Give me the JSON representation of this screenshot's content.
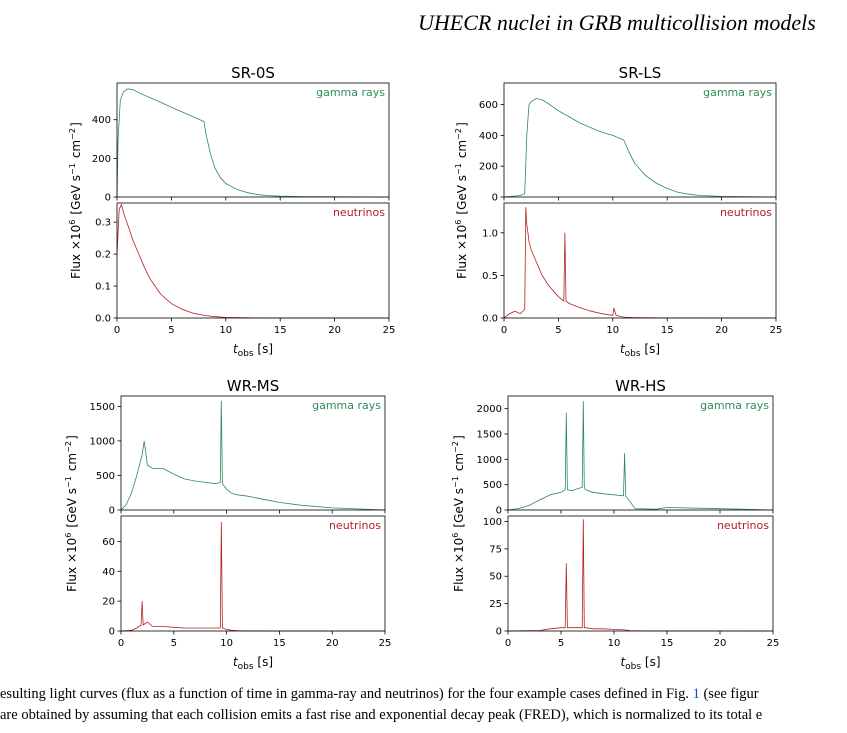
{
  "header": {
    "running_title": "UHECR nuclei in GRB multicollision models"
  },
  "caption": {
    "line1_pre": "esulting light curves (flux as a function of time in gamma-ray and neutrinos) for the four example cases defined in Fig. ",
    "line1_ref": "1",
    "line1_post": " (see figur",
    "line2": "are obtained by assuming that each collision emits a fast rise and exponential decay peak (FRED), which is normalized to its total e"
  },
  "colors": {
    "gamma": "#2e8b57",
    "neutrino": "#b22222"
  },
  "chart_data": [
    {
      "type": "line",
      "title": "SR-0S",
      "xlabel": "t_obs [s]",
      "ylabel": "Flux ×10^6 [GeV s^-1 cm^-2]",
      "xlim": [
        0,
        25
      ],
      "x_ticks": [
        0,
        5,
        10,
        15,
        20,
        25
      ],
      "gamma": {
        "name": "gamma rays",
        "ylim": [
          0,
          590
        ],
        "y_ticks": [
          0,
          200,
          400
        ],
        "x": [
          0,
          0.1,
          0.3,
          0.6,
          1.0,
          1.5,
          2.0,
          3.0,
          4.0,
          5.0,
          6.0,
          7.0,
          8.0,
          8.2,
          8.6,
          9.0,
          9.5,
          10,
          11,
          12,
          13,
          14,
          15,
          17,
          20,
          25
        ],
        "y": [
          0,
          300,
          500,
          545,
          560,
          555,
          540,
          515,
          490,
          465,
          440,
          415,
          390,
          320,
          220,
          150,
          100,
          70,
          40,
          22,
          12,
          7,
          4,
          2,
          1,
          0
        ]
      },
      "neutrino": {
        "name": "neutrinos",
        "ylim": [
          0,
          0.36
        ],
        "y_ticks": [
          0.0,
          0.1,
          0.2,
          0.3
        ],
        "x": [
          0,
          0.2,
          0.4,
          0.6,
          1.0,
          1.5,
          2.0,
          2.5,
          3.0,
          3.5,
          4.0,
          5.0,
          6.0,
          7.0,
          8.0,
          9.0,
          10,
          12,
          15,
          25
        ],
        "y": [
          0.2,
          0.34,
          0.355,
          0.33,
          0.29,
          0.24,
          0.2,
          0.16,
          0.125,
          0.1,
          0.075,
          0.045,
          0.027,
          0.015,
          0.008,
          0.004,
          0.002,
          0.0005,
          0.0001,
          0
        ]
      }
    },
    {
      "type": "line",
      "title": "SR-LS",
      "xlabel": "t_obs [s]",
      "ylabel": "Flux ×10^6 [GeV s^-1 cm^-2]",
      "xlim": [
        0,
        25
      ],
      "x_ticks": [
        0,
        5,
        10,
        15,
        20,
        25
      ],
      "gamma": {
        "name": "gamma rays",
        "ylim": [
          0,
          740
        ],
        "y_ticks": [
          0,
          200,
          400,
          600
        ],
        "x": [
          0,
          1.5,
          1.9,
          2.1,
          2.3,
          2.5,
          3.0,
          3.5,
          4.0,
          5.0,
          6.0,
          7.0,
          8.0,
          9.0,
          10.0,
          11.0,
          11.5,
          12,
          13,
          14,
          15,
          16,
          17,
          18,
          20,
          25
        ],
        "y": [
          0,
          10,
          20,
          400,
          600,
          620,
          640,
          630,
          610,
          560,
          520,
          480,
          450,
          420,
          400,
          370,
          290,
          220,
          140,
          90,
          55,
          30,
          18,
          10,
          4,
          0
        ]
      },
      "neutrino": {
        "name": "neutrinos",
        "ylim": [
          0,
          1.35
        ],
        "y_ticks": [
          0.0,
          0.5,
          1.0
        ],
        "x": [
          0,
          0.5,
          1.0,
          1.5,
          1.9,
          2.0,
          2.1,
          2.3,
          2.5,
          3.0,
          3.5,
          4.0,
          4.5,
          5.0,
          5.5,
          5.6,
          5.7,
          6.0,
          7.0,
          8.0,
          9.0,
          10.0,
          10.1,
          10.3,
          11.0,
          12.0,
          15,
          25
        ],
        "y": [
          0,
          0.05,
          0.08,
          0.05,
          0.1,
          1.3,
          1.1,
          0.9,
          0.8,
          0.65,
          0.5,
          0.4,
          0.32,
          0.25,
          0.2,
          1.0,
          0.2,
          0.17,
          0.12,
          0.08,
          0.05,
          0.03,
          0.12,
          0.03,
          0.01,
          0.005,
          0.001,
          0
        ]
      }
    },
    {
      "type": "line",
      "title": "WR-MS",
      "xlabel": "t_obs [s]",
      "ylabel": "Flux ×10^6 [GeV s^-1 cm^-2]",
      "xlim": [
        0,
        25
      ],
      "x_ticks": [
        0,
        5,
        10,
        15,
        20,
        25
      ],
      "gamma": {
        "name": "gamma rays",
        "ylim": [
          0,
          1650
        ],
        "y_ticks": [
          0,
          500,
          1000,
          1500
        ],
        "x": [
          0,
          0.5,
          1.0,
          1.5,
          2.0,
          2.2,
          2.5,
          3.0,
          4.0,
          5.0,
          6.0,
          7.0,
          8.0,
          9.0,
          9.4,
          9.5,
          9.6,
          10.0,
          10.5,
          11,
          12,
          13,
          14,
          15,
          17,
          20,
          25
        ],
        "y": [
          0,
          80,
          250,
          500,
          800,
          1000,
          650,
          600,
          600,
          520,
          450,
          420,
          400,
          380,
          400,
          1580,
          380,
          300,
          240,
          220,
          200,
          170,
          140,
          110,
          70,
          30,
          0
        ]
      },
      "neutrino": {
        "name": "neutrinos",
        "ylim": [
          0,
          77
        ],
        "y_ticks": [
          0,
          20,
          40,
          60
        ],
        "x": [
          0,
          1.0,
          1.5,
          1.9,
          2.0,
          2.1,
          2.5,
          3.0,
          4.0,
          5.0,
          6.0,
          7.0,
          8.0,
          9.0,
          9.4,
          9.5,
          9.6,
          10.0,
          10.5,
          11.0,
          12.0,
          15,
          25
        ],
        "y": [
          0,
          0.5,
          2,
          4,
          20,
          4,
          6,
          3,
          3,
          2.5,
          2,
          2,
          2,
          2,
          2,
          73,
          2,
          1,
          0.5,
          0.3,
          0.1,
          0.02,
          0
        ]
      }
    },
    {
      "type": "line",
      "title": "WR-HS",
      "xlabel": "t_obs [s]",
      "ylabel": "Flux ×10^6 [GeV s^-1 cm^-2]",
      "xlim": [
        0,
        25
      ],
      "x_ticks": [
        0,
        5,
        10,
        15,
        20,
        25
      ],
      "gamma": {
        "name": "gamma rays",
        "ylim": [
          0,
          2250
        ],
        "y_ticks": [
          0,
          500,
          1000,
          1500,
          2000
        ],
        "x": [
          0,
          1.0,
          2.0,
          3.0,
          4.0,
          5.0,
          5.4,
          5.5,
          5.6,
          6.0,
          7.0,
          7.1,
          7.2,
          7.3,
          8.0,
          9.0,
          10.0,
          10.9,
          11.0,
          11.1,
          12.0,
          14.0,
          15.0,
          18.0,
          22.0,
          25
        ],
        "y": [
          0,
          30,
          90,
          200,
          300,
          350,
          400,
          1920,
          400,
          380,
          450,
          2150,
          450,
          400,
          350,
          320,
          300,
          280,
          1120,
          280,
          25,
          15,
          50,
          35,
          15,
          0
        ]
      },
      "neutrino": {
        "name": "neutrinos",
        "ylim": [
          0,
          105
        ],
        "y_ticks": [
          0,
          25,
          50,
          75,
          100
        ],
        "x": [
          0,
          3.0,
          4.0,
          5.0,
          5.4,
          5.5,
          5.6,
          6.0,
          7.0,
          7.1,
          7.2,
          7.3,
          8.0,
          9.0,
          10.0,
          11.0,
          11.5,
          13.0,
          25
        ],
        "y": [
          0,
          0.5,
          2,
          3,
          3,
          62,
          3,
          3,
          3,
          102,
          3,
          3,
          2,
          2,
          1.5,
          1,
          0.3,
          0.05,
          0
        ]
      }
    }
  ]
}
